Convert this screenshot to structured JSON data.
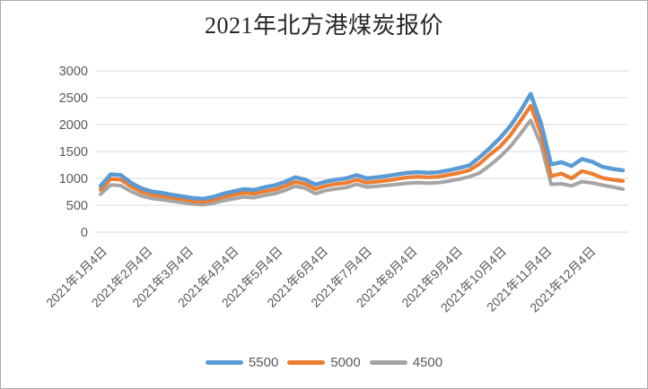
{
  "chart_title": "2021年北方港煤炭报价",
  "chart_data": {
    "type": "line",
    "title": "2021年北方港煤炭报价",
    "xlabel": "",
    "ylabel": "",
    "ylim": [
      0,
      3000
    ],
    "y_ticks": [
      0,
      500,
      1000,
      1500,
      2000,
      2500,
      3000
    ],
    "grid": "horizontal",
    "gridline_color": "#d9d9d9",
    "axis_text_color": "#595959",
    "legend_position": "bottom",
    "categories": [
      "2021年1月4日",
      "2021年2月4日",
      "2021年3月4日",
      "2021年4月4日",
      "2021年5月4日",
      "2021年6月4日",
      "2021年7月4日",
      "2021年8月4日",
      "2021年9月4日",
      "2021年10月4日",
      "2021年11月4日",
      "2021年12月4日"
    ],
    "x_tick_days": [
      0,
      31,
      59,
      90,
      120,
      151,
      181,
      212,
      243,
      273,
      304,
      334
    ],
    "x_range_days": [
      0,
      357
    ],
    "point_interval_days": 7,
    "series": [
      {
        "name": "5500",
        "color": "#5b9bd5",
        "values": [
          860,
          1075,
          1060,
          915,
          815,
          755,
          730,
          695,
          665,
          635,
          620,
          655,
          715,
          760,
          800,
          785,
          835,
          870,
          935,
          1020,
          975,
          885,
          940,
          975,
          1000,
          1060,
          1000,
          1020,
          1045,
          1075,
          1105,
          1115,
          1105,
          1115,
          1150,
          1190,
          1240,
          1390,
          1560,
          1750,
          1970,
          2250,
          2570,
          2030,
          1260,
          1300,
          1230,
          1360,
          1310,
          1215,
          1175,
          1150
        ]
      },
      {
        "name": "5000",
        "color": "#ed7d31",
        "values": [
          790,
          990,
          975,
          845,
          750,
          695,
          670,
          640,
          610,
          580,
          565,
          600,
          655,
          695,
          730,
          715,
          760,
          790,
          855,
          935,
          895,
          800,
          860,
          895,
          915,
          975,
          920,
          940,
          960,
          990,
          1020,
          1030,
          1020,
          1030,
          1065,
          1100,
          1150,
          1270,
          1440,
          1590,
          1800,
          2070,
          2350,
          1840,
          1040,
          1090,
          1000,
          1135,
          1085,
          1010,
          975,
          950
        ]
      },
      {
        "name": "4500",
        "color": "#a5a5a5",
        "values": [
          705,
          880,
          865,
          755,
          675,
          625,
          605,
          575,
          550,
          525,
          510,
          540,
          585,
          620,
          655,
          640,
          685,
          715,
          775,
          855,
          815,
          715,
          775,
          805,
          830,
          890,
          840,
          855,
          870,
          890,
          910,
          920,
          910,
          920,
          950,
          985,
          1030,
          1100,
          1240,
          1400,
          1590,
          1830,
          2080,
          1630,
          890,
          900,
          860,
          940,
          915,
          875,
          840,
          800
        ]
      }
    ]
  }
}
